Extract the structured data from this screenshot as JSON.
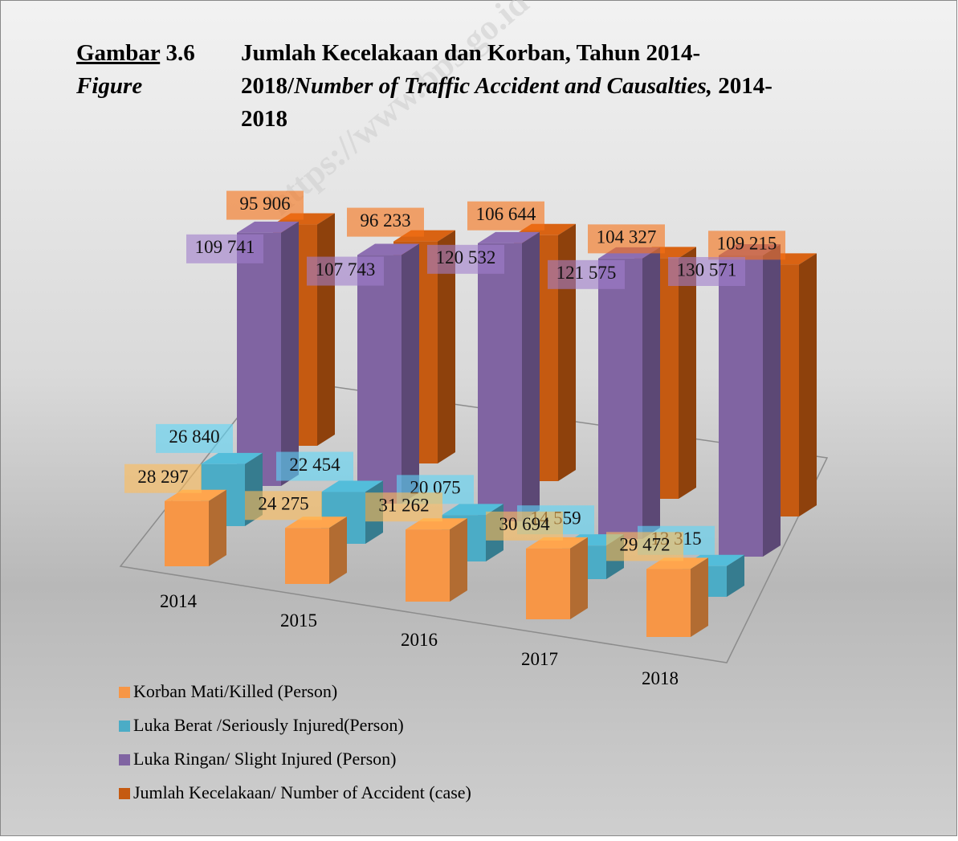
{
  "chart_data": {
    "type": "bar3d",
    "figure_label": "Gambar",
    "figure_number": "3.6",
    "figure_label_en": "Figure",
    "title_parts": [
      "Jumlah Kecelakaan dan Korban, Tahun 2014-",
      "2018/",
      "Number of  Traffic Accident and Causalties,",
      " 2014-",
      "2018"
    ],
    "watermark": "https://www.bps.go.id",
    "categories": [
      "2014",
      "2015",
      "2016",
      "2017",
      "2018"
    ],
    "series": [
      {
        "name": "Korban Mati/Killed (Person)",
        "color": "#f79646",
        "values": [
          28297,
          24275,
          31262,
          30694,
          29472
        ],
        "value_labels": [
          "28 297",
          "24 275",
          "31 262",
          "30 694",
          "29 472"
        ]
      },
      {
        "name": "Luka Berat /Seriously Injured(Person)",
        "color": "#4bacc6",
        "values": [
          26840,
          22454,
          20075,
          14559,
          13315
        ],
        "value_labels": [
          "26 840",
          "22 454",
          "20 075",
          "14 559",
          "13 315"
        ]
      },
      {
        "name": "Luka Ringan/ Slight Injured (Person)",
        "color": "#8064a2",
        "values": [
          109741,
          107743,
          120532,
          121575,
          130571
        ],
        "value_labels": [
          "109 741",
          "107 743",
          "120 532",
          "121 575",
          "130 571"
        ]
      },
      {
        "name": "Jumlah Kecelakaan/ Number of Accident  (case)",
        "color": "#c55a11",
        "values": [
          95906,
          96233,
          106644,
          104327,
          109215
        ],
        "value_labels": [
          "95 906",
          "96 233",
          "106 644",
          "104 327",
          "109 215"
        ]
      }
    ]
  }
}
